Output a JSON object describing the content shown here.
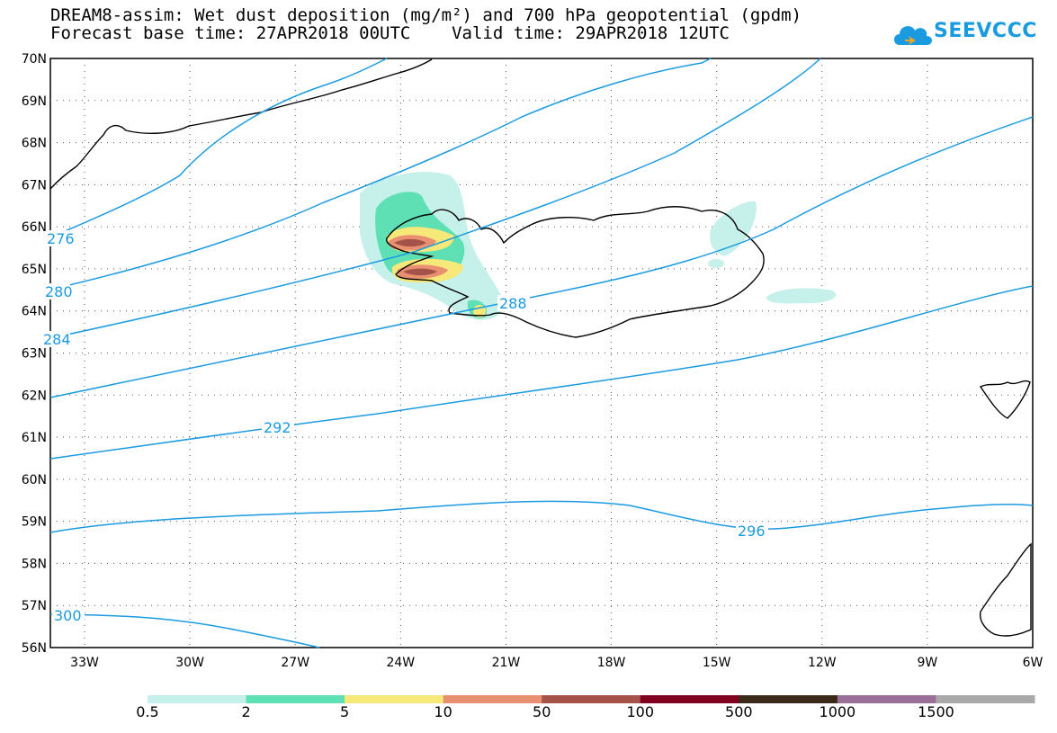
{
  "header": {
    "title_line1": "DREAM8-assim: Wet dust deposition (mg/m²) and 700 hPa geopotential (gpdm)",
    "title_line2": "Forecast base time: 27APR2018 00UTC    Valid time: 29APR2018 12UTC"
  },
  "logo": {
    "text": "SEEVCCC",
    "icon": "cloud-icon",
    "color": "#1a9be0"
  },
  "map": {
    "lat_labels": [
      "70N",
      "69N",
      "68N",
      "67N",
      "66N",
      "65N",
      "64N",
      "63N",
      "62N",
      "61N",
      "60N",
      "59N",
      "58N",
      "57N",
      "56N"
    ],
    "lon_labels": [
      "33W",
      "30W",
      "27W",
      "24W",
      "21W",
      "18W",
      "15W",
      "12W",
      "9W",
      "6W"
    ],
    "contour_color": "#1a9be0",
    "contour_labels": [
      "276",
      "280",
      "284",
      "288",
      "292",
      "296",
      "300"
    ]
  },
  "legend": {
    "colors": [
      "#c6f0ea",
      "#5ee0b4",
      "#f7e87a",
      "#e89070",
      "#a4524a",
      "#800020",
      "#3a2a1a",
      "#9a7099",
      "#a9a9a9"
    ],
    "labels": [
      "0.5",
      "2",
      "5",
      "10",
      "50",
      "100",
      "500",
      "1000",
      "1500"
    ]
  }
}
